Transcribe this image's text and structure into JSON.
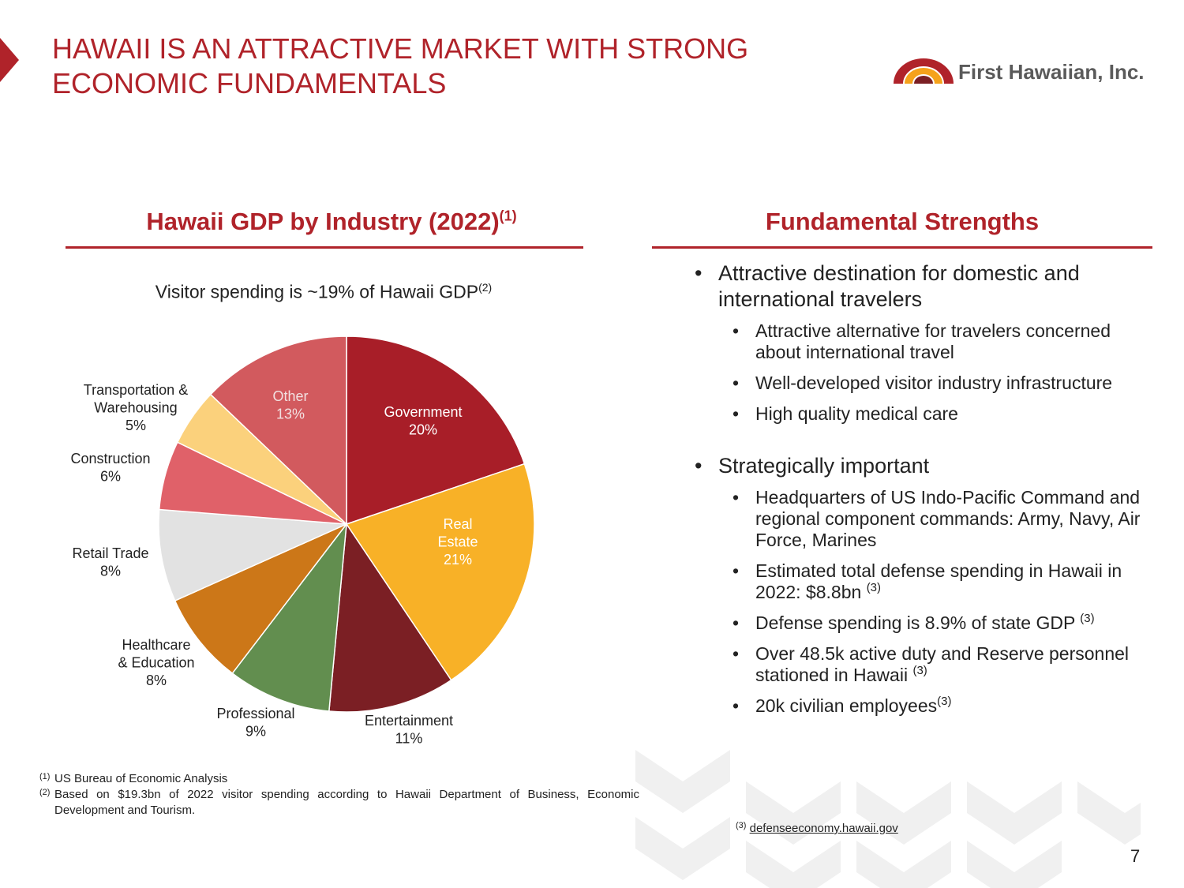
{
  "header": {
    "title_line1": "HAWAII IS AN ATTRACTIVE MARKET WITH STRONG",
    "title_line2": "ECONOMIC FUNDAMENTALS",
    "logo_text": "First Hawaiian, Inc."
  },
  "left": {
    "section_title": "Hawaii GDP by Industry (2022)",
    "section_title_ref": "(1)",
    "subtitle": "Visitor spending is ~19% of Hawaii GDP",
    "subtitle_ref": "(2)"
  },
  "chart_data": {
    "type": "pie",
    "title": "Hawaii GDP by Industry (2022)",
    "start": "12 o'clock, clockwise",
    "slices": [
      {
        "label_lines": [
          "Government"
        ],
        "pct_text": "20%",
        "value": 20,
        "color": "#a81e28",
        "label_color": "#ffffff"
      },
      {
        "label_lines": [
          "Real",
          "Estate"
        ],
        "pct_text": "21%",
        "value": 21,
        "color": "#f8b127",
        "label_color": "#ffffff"
      },
      {
        "label_lines": [
          "Entertainment"
        ],
        "pct_text": "11%",
        "value": 11,
        "color": "#7b1f24",
        "label_color": "#222222"
      },
      {
        "label_lines": [
          "Professional"
        ],
        "pct_text": "9%",
        "value": 9,
        "color": "#628e4f",
        "label_color": "#222222"
      },
      {
        "label_lines": [
          "Healthcare",
          "& Education"
        ],
        "pct_text": "8%",
        "value": 8,
        "color": "#cc7718",
        "label_color": "#222222"
      },
      {
        "label_lines": [
          "Retail Trade"
        ],
        "pct_text": "8%",
        "value": 8,
        "color": "#e2e2e2",
        "label_color": "#222222"
      },
      {
        "label_lines": [
          "Construction"
        ],
        "pct_text": "6%",
        "value": 6,
        "color": "#e06169",
        "label_color": "#222222"
      },
      {
        "label_lines": [
          "Transportation &",
          "Warehousing"
        ],
        "pct_text": "5%",
        "value": 5,
        "color": "#fbd17c",
        "label_color": "#222222"
      },
      {
        "label_lines": [
          "Other"
        ],
        "pct_text": "13%",
        "value": 13,
        "color": "#d25a5e",
        "label_color": "#f2e0e0"
      }
    ]
  },
  "right": {
    "section_title": "Fundamental Strengths",
    "bullets": [
      {
        "text": "Attractive destination for domestic and international travelers",
        "sub": [
          {
            "text": "Attractive alternative for travelers concerned about international travel",
            "ref": ""
          },
          {
            "text": "Well-developed visitor industry infrastructure",
            "ref": ""
          },
          {
            "text": "High quality medical care",
            "ref": ""
          }
        ]
      },
      {
        "text": "Strategically important",
        "sub": [
          {
            "text": "Headquarters of US Indo-Pacific Command and regional component commands:  Army, Navy, Air Force, Marines",
            "ref": ""
          },
          {
            "text": "Estimated total defense spending in Hawaii in 2022:  $8.8bn ",
            "ref": "(3)"
          },
          {
            "text": "Defense spending is 8.9% of state GDP ",
            "ref": "(3)"
          },
          {
            "text": "Over 48.5k active duty and Reserve personnel stationed in Hawaii ",
            "ref": "(3)"
          },
          {
            "text": "20k civilian employees",
            "ref": "(3)"
          }
        ]
      }
    ]
  },
  "footnotes": [
    {
      "marker": "(1)",
      "text": "US Bureau of Economic Analysis"
    },
    {
      "marker": "(2)",
      "text": "Based on $19.3bn of 2022 visitor spending according to Hawaii Department of Business, Economic Development and Tourism."
    }
  ],
  "source_note": {
    "marker": "(3)",
    "text": "defenseeconomy.hawaii.gov"
  },
  "page_number": "7",
  "colors": {
    "brand_red": "#b0232a"
  }
}
